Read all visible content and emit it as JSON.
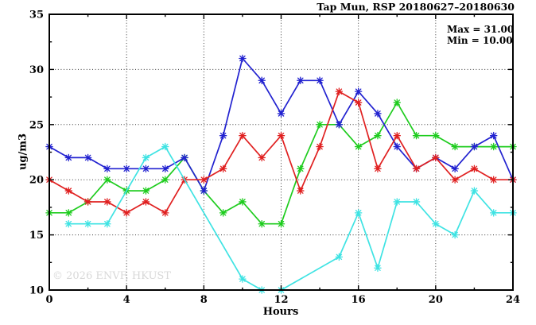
{
  "header": {
    "title": "Tap Mun, RSP 20180627–20180630"
  },
  "annotation": {
    "max_label": "Max = 31.00",
    "min_label": "Min = 10.00"
  },
  "watermark": "© 2026 ENVF, HKUST",
  "chart_data": {
    "type": "line",
    "title": "Tap Mun, RSP 20180627–20180630",
    "xlabel": "Hours",
    "ylabel": "ug/m3",
    "xlim": [
      0,
      24
    ],
    "ylim": [
      10,
      35
    ],
    "x_major_ticks": [
      0,
      4,
      8,
      12,
      16,
      20,
      24
    ],
    "x_minor_tick_step": 2,
    "y_major_ticks": [
      10,
      15,
      20,
      25,
      30,
      35
    ],
    "y_minor_tick_step": 2.5,
    "grid_x": [
      4,
      8,
      12,
      16,
      20
    ],
    "grid_y": [
      15,
      20,
      25,
      30
    ],
    "grid_style": "dotted",
    "legend_position": "none",
    "marker": "asterisk",
    "stats": {
      "max": 31.0,
      "min": 10.0
    },
    "series": [
      {
        "name": "blue",
        "color": "#2222d0",
        "draw_order": 2,
        "x": [
          0,
          1,
          2,
          3,
          4,
          5,
          6,
          7,
          8,
          9,
          10,
          11,
          12,
          13,
          14,
          15,
          16,
          17,
          18,
          19,
          20,
          21,
          22,
          23,
          24
        ],
        "values": [
          23,
          22,
          22,
          21,
          21,
          21,
          21,
          22,
          19,
          24,
          31,
          29,
          26,
          29,
          29,
          25,
          28,
          26,
          23,
          21,
          22,
          21,
          23,
          24,
          20
        ]
      },
      {
        "name": "red",
        "color": "#e02020",
        "draw_order": 3,
        "x": [
          0,
          1,
          2,
          3,
          4,
          5,
          6,
          7,
          8,
          9,
          10,
          11,
          12,
          13,
          14,
          15,
          16,
          17,
          18,
          19,
          20,
          21,
          22,
          23,
          24
        ],
        "values": [
          20,
          19,
          18,
          18,
          17,
          18,
          17,
          20,
          20,
          21,
          24,
          22,
          24,
          19,
          23,
          28,
          27,
          21,
          24,
          21,
          22,
          20,
          21,
          20,
          20
        ]
      },
      {
        "name": "green",
        "color": "#1ecc1e",
        "draw_order": 1,
        "x": [
          0,
          1,
          2,
          3,
          4,
          5,
          6,
          7,
          8,
          9,
          10,
          11,
          12,
          13,
          14,
          15,
          16,
          17,
          18,
          19,
          20,
          21,
          22,
          23,
          24
        ],
        "values": [
          17,
          17,
          18,
          20,
          19,
          19,
          20,
          22,
          19,
          17,
          18,
          16,
          16,
          21,
          25,
          25,
          23,
          24,
          27,
          24,
          24,
          23,
          23,
          23,
          23
        ]
      },
      {
        "name": "cyan",
        "color": "#3fe3e3",
        "draw_order": 4,
        "x": [
          1,
          2,
          3,
          5,
          6,
          10,
          11,
          12,
          15,
          16,
          17,
          18,
          19,
          20,
          21,
          22,
          23,
          24
        ],
        "values": [
          16,
          16,
          16,
          22,
          23,
          11,
          10,
          10,
          13,
          17,
          12,
          18,
          18,
          16,
          15,
          19,
          17,
          17
        ]
      }
    ]
  }
}
